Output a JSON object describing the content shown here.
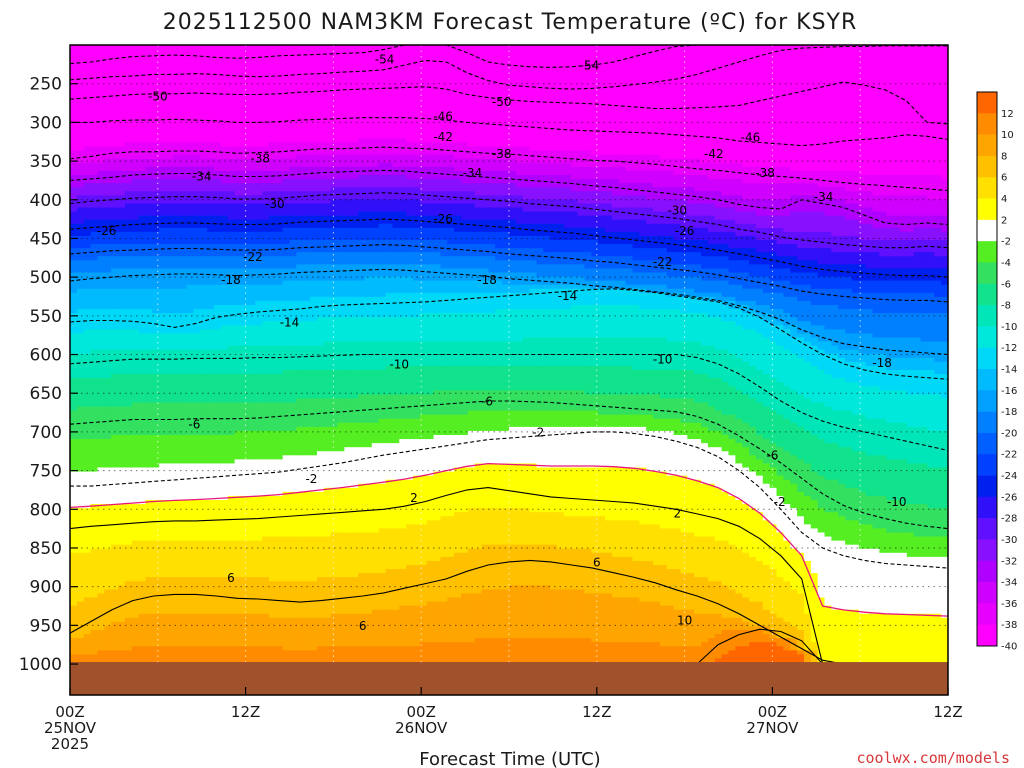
{
  "chart_data": {
    "type": "heatmap",
    "title": "2025112500 NAM3KM Forecast Temperature (ºC) for KSYR",
    "xlabel": "Forecast Time (UTC)",
    "ylabel": "",
    "credit": "coolwx.com/models",
    "x_range_hours": [
      0,
      60
    ],
    "x_ticks": [
      {
        "hour": 0,
        "lines": [
          "00Z",
          "25NOV",
          "2025"
        ]
      },
      {
        "hour": 12,
        "lines": [
          "12Z"
        ]
      },
      {
        "hour": 24,
        "lines": [
          "00Z",
          "26NOV"
        ]
      },
      {
        "hour": 36,
        "lines": [
          "12Z"
        ]
      },
      {
        "hour": 48,
        "lines": [
          "00Z",
          "27NOV"
        ]
      },
      {
        "hour": 60,
        "lines": [
          "12Z"
        ]
      }
    ],
    "y_range_hpa": [
      1040,
      200
    ],
    "y_ticks": [
      250,
      300,
      350,
      400,
      450,
      500,
      550,
      600,
      650,
      700,
      750,
      800,
      850,
      900,
      950,
      1000
    ],
    "surface_pressure_hpa": 1000,
    "colorbar": {
      "levels": [
        {
          "label": "12",
          "color": "#ff6600"
        },
        {
          "label": "10",
          "color": "#ff8c00"
        },
        {
          "label": "8",
          "color": "#ffa500"
        },
        {
          "label": "6",
          "color": "#ffc000"
        },
        {
          "label": "4",
          "color": "#ffe000"
        },
        {
          "label": "2",
          "color": "#ffff00"
        },
        {
          "label": "-2",
          "color": "#ffffff"
        },
        {
          "label": "-4",
          "color": "#55ee22"
        },
        {
          "label": "-6",
          "color": "#33e060"
        },
        {
          "label": "-8",
          "color": "#11e28c"
        },
        {
          "label": "-10",
          "color": "#00e6b8"
        },
        {
          "label": "-12",
          "color": "#00e8dc"
        },
        {
          "label": "-14",
          "color": "#00d8f8"
        },
        {
          "label": "-16",
          "color": "#00bcff"
        },
        {
          "label": "-18",
          "color": "#00a0ff"
        },
        {
          "label": "-20",
          "color": "#0080ff"
        },
        {
          "label": "-22",
          "color": "#0060ff"
        },
        {
          "label": "-24",
          "color": "#0040ff"
        },
        {
          "label": "-26",
          "color": "#0020f0"
        },
        {
          "label": "-28",
          "color": "#3010f8"
        },
        {
          "label": "-30",
          "color": "#6010ff"
        },
        {
          "label": "-32",
          "color": "#8810ff"
        },
        {
          "label": "-34",
          "color": "#b000ff"
        },
        {
          "label": "-36",
          "color": "#d000ff"
        },
        {
          "label": "-38",
          "color": "#e800ff"
        },
        {
          "label": "-40",
          "color": "#ff00ff"
        }
      ]
    },
    "isotherms": [
      {
        "label": "-54",
        "pressures": [
          224,
          222,
          218,
          215,
          214,
          213,
          214,
          216,
          217,
          216,
          214,
          213,
          212,
          211,
          210,
          206,
          200,
          195,
          196,
          210,
          222,
          226,
          228,
          229,
          228,
          226,
          222,
          215,
          208,
          202,
          200,
          200,
          200,
          200,
          200,
          200,
          200,
          200,
          200,
          200,
          200,
          200,
          200
        ]
      },
      {
        "label": "-50",
        "pressures": [
          245,
          243,
          241,
          240,
          238,
          238,
          237,
          238,
          240,
          241,
          240,
          238,
          237,
          235,
          234,
          232,
          226,
          220,
          222,
          236,
          246,
          252,
          254,
          256,
          257,
          256,
          254,
          251,
          248,
          244,
          238,
          230,
          222,
          214,
          207,
          204,
          203,
          202,
          202,
          201,
          201,
          201,
          201
        ]
      },
      {
        "label": "-46",
        "pressures": [
          270,
          268,
          266,
          264,
          263,
          263,
          262,
          263,
          264,
          264,
          263,
          261,
          260,
          258,
          257,
          256,
          255,
          254,
          257,
          264,
          268,
          271,
          273,
          274,
          275,
          276,
          278,
          280,
          282,
          282,
          281,
          280,
          278,
          272,
          266,
          260,
          254,
          248,
          252,
          258,
          272,
          300,
          302
        ]
      },
      {
        "label": "-42",
        "pressures": [
          300,
          300,
          298,
          297,
          297,
          296,
          297,
          298,
          300,
          300,
          299,
          297,
          296,
          295,
          294,
          294,
          294,
          295,
          297,
          300,
          302,
          304,
          306,
          308,
          310,
          311,
          312,
          313,
          314,
          316,
          318,
          320,
          324,
          326,
          328,
          330,
          328,
          324,
          322,
          320,
          316,
          318,
          322
        ]
      },
      {
        "label": "-38",
        "pressures": [
          347,
          344,
          340,
          338,
          338,
          337,
          337,
          338,
          340,
          339,
          338,
          336,
          334,
          334,
          333,
          332,
          333,
          334,
          336,
          338,
          340,
          341,
          343,
          345,
          347,
          349,
          350,
          352,
          354,
          357,
          360,
          362,
          365,
          368,
          370,
          372,
          375,
          378,
          380,
          382,
          384,
          386,
          388
        ]
      },
      {
        "label": "-34",
        "pressures": [
          375,
          373,
          371,
          368,
          367,
          366,
          366,
          368,
          370,
          370,
          369,
          367,
          365,
          364,
          363,
          362,
          363,
          365,
          367,
          369,
          371,
          373,
          375,
          377,
          379,
          382,
          384,
          387,
          390,
          393,
          396,
          400,
          406,
          410,
          412,
          400,
          405,
          410,
          420,
          430,
          432,
          430,
          432
        ]
      },
      {
        "label": "-30",
        "pressures": [
          405,
          402,
          400,
          398,
          397,
          396,
          396,
          397,
          399,
          399,
          398,
          396,
          394,
          393,
          392,
          391,
          392,
          394,
          396,
          398,
          400,
          402,
          405,
          407,
          409,
          412,
          415,
          418,
          421,
          424,
          428,
          432,
          438,
          442,
          448,
          452,
          455,
          458,
          460,
          462,
          462,
          460,
          462
        ]
      },
      {
        "label": "-26",
        "pressures": [
          438,
          436,
          434,
          432,
          431,
          430,
          430,
          431,
          432,
          432,
          431,
          429,
          428,
          427,
          426,
          425,
          426,
          428,
          430,
          432,
          434,
          436,
          439,
          441,
          443,
          446,
          449,
          452,
          455,
          458,
          461,
          465,
          470,
          475,
          480,
          486,
          490,
          493,
          495,
          497,
          498,
          498,
          500
        ]
      },
      {
        "label": "-22",
        "pressures": [
          470,
          468,
          466,
          465,
          464,
          463,
          463,
          464,
          465,
          465,
          464,
          462,
          461,
          460,
          459,
          458,
          459,
          461,
          463,
          465,
          467,
          470,
          472,
          474,
          476,
          479,
          481,
          484,
          487,
          490,
          493,
          497,
          502,
          507,
          512,
          518,
          522,
          525,
          527,
          529,
          530,
          530,
          532
        ]
      },
      {
        "label": "-18",
        "pressures": [
          505,
          502,
          500,
          498,
          497,
          496,
          496,
          497,
          498,
          497,
          496,
          494,
          493,
          492,
          491,
          490,
          491,
          493,
          495,
          497,
          499,
          502,
          504,
          506,
          508,
          511,
          513,
          516,
          519,
          522,
          526,
          530,
          537,
          545,
          555,
          568,
          578,
          586,
          590,
          594,
          596,
          598,
          600
        ]
      },
      {
        "label": "-14",
        "pressures": [
          558,
          556,
          556,
          557,
          560,
          565,
          560,
          552,
          548,
          545,
          543,
          541,
          538,
          536,
          535,
          534,
          533,
          532,
          530,
          528,
          526,
          524,
          522,
          520,
          518,
          516,
          515,
          517,
          520,
          524,
          528,
          532,
          540,
          552,
          568,
          585,
          600,
          612,
          620,
          625,
          628,
          630,
          632
        ]
      },
      {
        "label": "-10",
        "pressures": [
          612,
          610,
          608,
          606,
          606,
          606,
          605,
          605,
          605,
          604,
          604,
          603,
          602,
          601,
          600,
          600,
          600,
          600,
          600,
          600,
          600,
          600,
          600,
          600,
          600,
          600,
          600,
          600,
          600,
          600,
          604,
          612,
          625,
          642,
          660,
          675,
          686,
          694,
          700,
          706,
          712,
          718,
          724
        ]
      },
      {
        "label": "-6",
        "pressures": [
          690,
          688,
          686,
          684,
          684,
          684,
          683,
          683,
          683,
          682,
          680,
          678,
          676,
          674,
          672,
          670,
          668,
          666,
          664,
          662,
          660,
          660,
          661,
          662,
          664,
          666,
          668,
          670,
          672,
          674,
          680,
          690,
          705,
          722,
          740,
          760,
          780,
          795,
          805,
          812,
          818,
          822,
          825
        ]
      },
      {
        "label": "-2",
        "pressures": [
          770,
          770,
          768,
          766,
          764,
          762,
          760,
          758,
          756,
          754,
          752,
          748,
          744,
          740,
          735,
          730,
          726,
          722,
          718,
          714,
          710,
          708,
          706,
          704,
          702,
          700,
          700,
          702,
          706,
          712,
          720,
          732,
          750,
          772,
          800,
          830,
          850,
          860,
          866,
          870,
          872,
          874,
          876
        ]
      },
      {
        "label": "2",
        "pressures": [
          825,
          822,
          820,
          818,
          816,
          815,
          815,
          814,
          813,
          812,
          810,
          808,
          806,
          804,
          802,
          800,
          796,
          790,
          782,
          775,
          772,
          776,
          780,
          784,
          786,
          788,
          790,
          792,
          796,
          800,
          806,
          812,
          822,
          838,
          860,
          890,
          1000,
          1000,
          1000,
          1000,
          1000,
          1000,
          1000
        ]
      },
      {
        "label": "6",
        "pressures": [
          960,
          945,
          930,
          918,
          912,
          910,
          910,
          912,
          915,
          916,
          918,
          920,
          918,
          915,
          912,
          908,
          902,
          896,
          890,
          880,
          872,
          868,
          866,
          868,
          872,
          876,
          882,
          888,
          895,
          904,
          912,
          922,
          935,
          950,
          965,
          980,
          995,
          1000,
          1000,
          1000,
          1000,
          1000,
          1000
        ]
      },
      {
        "label": "10",
        "pressures": [
          1000,
          1000,
          1000,
          1000,
          1000,
          1000,
          1000,
          1000,
          1000,
          1000,
          1000,
          1000,
          1000,
          1000,
          1000,
          1000,
          1000,
          1000,
          1000,
          1000,
          1000,
          1000,
          1000,
          1000,
          1000,
          1000,
          1000,
          1000,
          1000,
          1000,
          1000,
          975,
          962,
          955,
          958,
          970,
          1000,
          1000,
          1000,
          1000,
          1000,
          1000,
          1000
        ]
      }
    ],
    "contour_labels": [
      {
        "text": "-54",
        "hour": 21.5,
        "hpa": 218
      },
      {
        "text": "-54",
        "hour": 35.5,
        "hpa": 226
      },
      {
        "text": "-50",
        "hour": 6,
        "hpa": 266
      },
      {
        "text": "-50",
        "hour": 29.5,
        "hpa": 273
      },
      {
        "text": "-46",
        "hour": 25.5,
        "hpa": 292
      },
      {
        "text": "-46",
        "hour": 46.5,
        "hpa": 319
      },
      {
        "text": "-42",
        "hour": 25.5,
        "hpa": 318
      },
      {
        "text": "-42",
        "hour": 44,
        "hpa": 340
      },
      {
        "text": "-38",
        "hour": 13,
        "hpa": 346
      },
      {
        "text": "-38",
        "hour": 29.5,
        "hpa": 340
      },
      {
        "text": "-38",
        "hour": 47.5,
        "hpa": 365
      },
      {
        "text": "-34",
        "hour": 9,
        "hpa": 369
      },
      {
        "text": "-34",
        "hour": 27.5,
        "hpa": 365
      },
      {
        "text": "-34",
        "hour": 51.5,
        "hpa": 396
      },
      {
        "text": "-30",
        "hour": 14,
        "hpa": 405
      },
      {
        "text": "-30",
        "hour": 41.5,
        "hpa": 413
      },
      {
        "text": "-26",
        "hour": 2.5,
        "hpa": 440
      },
      {
        "text": "-26",
        "hour": 25.5,
        "hpa": 424
      },
      {
        "text": "-26",
        "hour": 42,
        "hpa": 440
      },
      {
        "text": "-22",
        "hour": 12.5,
        "hpa": 473
      },
      {
        "text": "-22",
        "hour": 40.5,
        "hpa": 480
      },
      {
        "text": "-18",
        "hour": 11,
        "hpa": 503
      },
      {
        "text": "-18",
        "hour": 28.5,
        "hpa": 503
      },
      {
        "text": "-18",
        "hour": 55.5,
        "hpa": 610
      },
      {
        "text": "-14",
        "hour": 15,
        "hpa": 558
      },
      {
        "text": "-14",
        "hour": 34,
        "hpa": 524
      },
      {
        "text": "-10",
        "hour": 22.5,
        "hpa": 612
      },
      {
        "text": "-10",
        "hour": 40.5,
        "hpa": 606
      },
      {
        "text": "-10",
        "hour": 56.5,
        "hpa": 790
      },
      {
        "text": "-6",
        "hour": 8.5,
        "hpa": 690
      },
      {
        "text": "-6",
        "hour": 28.5,
        "hpa": 660
      },
      {
        "text": "-6",
        "hour": 48,
        "hpa": 730
      },
      {
        "text": "-2",
        "hour": 16.5,
        "hpa": 760
      },
      {
        "text": "-2",
        "hour": 32,
        "hpa": 700
      },
      {
        "text": "-2",
        "hour": 48.5,
        "hpa": 790
      },
      {
        "text": "2",
        "hour": 23.5,
        "hpa": 785
      },
      {
        "text": "2",
        "hour": 41.5,
        "hpa": 805
      },
      {
        "text": "6",
        "hour": 11,
        "hpa": 888
      },
      {
        "text": "6",
        "hour": 20,
        "hpa": 950
      },
      {
        "text": "6",
        "hour": 36,
        "hpa": 868
      },
      {
        "text": "10",
        "hour": 42,
        "hpa": 943
      }
    ]
  }
}
